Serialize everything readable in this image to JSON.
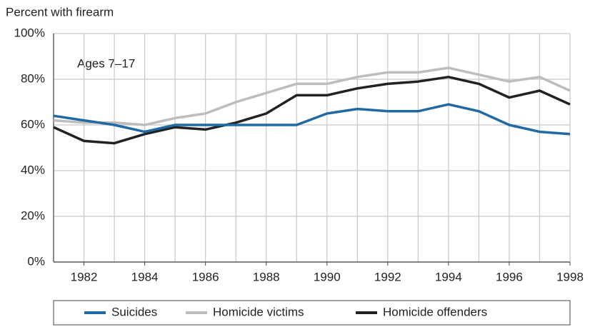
{
  "chart_data": {
    "type": "line",
    "y_label": "Percent with firearm",
    "annotation": "Ages 7–17",
    "x": [
      1981,
      1982,
      1983,
      1984,
      1985,
      1986,
      1987,
      1988,
      1989,
      1990,
      1991,
      1992,
      1993,
      1994,
      1995,
      1996,
      1997,
      1998
    ],
    "xlim": [
      1981,
      1998
    ],
    "xticks": [
      1982,
      1984,
      1986,
      1988,
      1990,
      1992,
      1994,
      1996,
      1998
    ],
    "ylim": [
      0,
      100
    ],
    "yticks": [
      {
        "value": 0,
        "label": "0%"
      },
      {
        "value": 20,
        "label": "20%"
      },
      {
        "value": 40,
        "label": "40%"
      },
      {
        "value": 60,
        "label": "60%"
      },
      {
        "value": 80,
        "label": "80%"
      },
      {
        "value": 100,
        "label": "100%"
      }
    ],
    "grid": true,
    "legend": "bottom",
    "series": [
      {
        "name": "Suicides",
        "color": "#1f6aa5",
        "values": [
          64,
          62,
          60,
          57,
          60,
          60,
          60,
          60,
          60,
          65,
          67,
          66,
          66,
          69,
          66,
          60,
          57,
          56
        ]
      },
      {
        "name": "Homicide victims",
        "color": "#bdbdbd",
        "values": [
          62,
          61,
          61,
          60,
          63,
          65,
          70,
          74,
          78,
          78,
          81,
          83,
          83,
          85,
          82,
          79,
          81,
          75
        ]
      },
      {
        "name": "Homicide offenders",
        "color": "#222222",
        "values": [
          59,
          53,
          52,
          56,
          59,
          58,
          61,
          65,
          73,
          73,
          76,
          78,
          79,
          81,
          78,
          72,
          75,
          69
        ]
      }
    ]
  }
}
